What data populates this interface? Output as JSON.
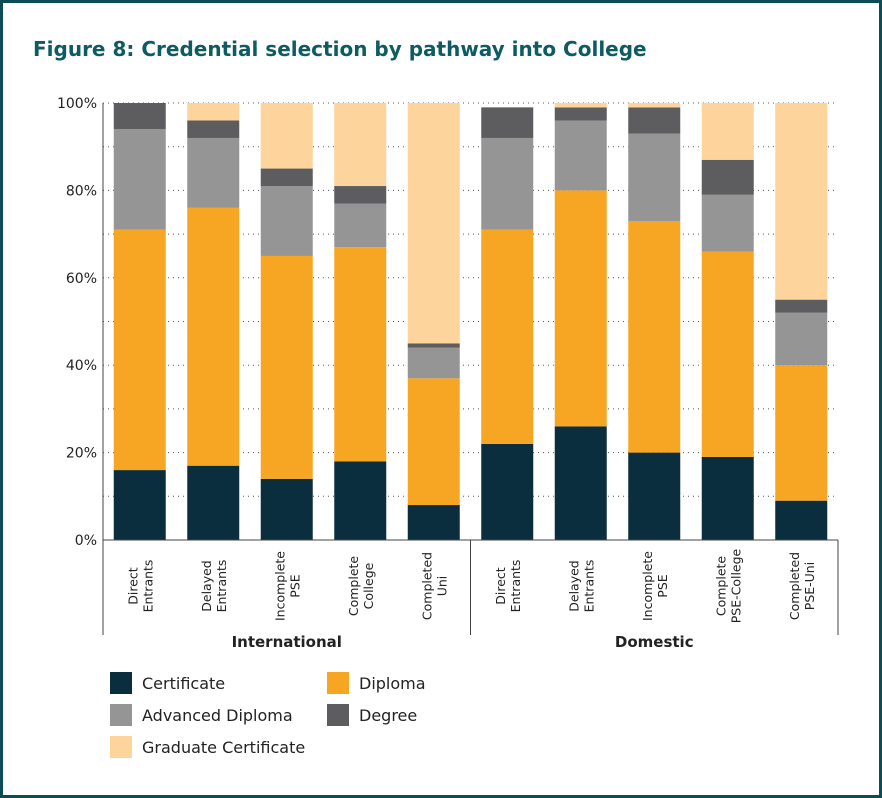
{
  "chart_data": {
    "type": "stacked_bar",
    "title": "Figure 8: Credential selection by pathway into College",
    "groups": [
      {
        "name": "International",
        "categories": [
          [
            "Direct",
            "Entrants"
          ],
          [
            "Delayed",
            "Entrants"
          ],
          [
            "Incomplete",
            "PSE"
          ],
          [
            "Complete",
            "College"
          ],
          [
            "Completed",
            "Uni"
          ]
        ]
      },
      {
        "name": "Domestic",
        "categories": [
          [
            "Direct",
            "Entrants"
          ],
          [
            "Delayed",
            "Entrants"
          ],
          [
            "Incomplete",
            "PSE"
          ],
          [
            "Complete",
            "PSE-College"
          ],
          [
            "Completed",
            "PSE-Uni"
          ]
        ]
      }
    ],
    "series": [
      {
        "name": "Certificate",
        "color": "#0b2e3f",
        "values": [
          16,
          17,
          14,
          18,
          8,
          22,
          26,
          20,
          19,
          9
        ]
      },
      {
        "name": "Diploma",
        "color": "#f6a623",
        "values": [
          55,
          59,
          51,
          49,
          29,
          49,
          54,
          53,
          47,
          31
        ]
      },
      {
        "name": "Advanced Diploma",
        "color": "#959596",
        "values": [
          23,
          16,
          16,
          10,
          7,
          21,
          16,
          20,
          13,
          12
        ]
      },
      {
        "name": "Degree",
        "color": "#5d5d60",
        "values": [
          6,
          4,
          4,
          4,
          1,
          7,
          3,
          6,
          8,
          3
        ]
      },
      {
        "name": "Graduate Certificate",
        "color": "#fdd49b",
        "values": [
          0,
          4,
          15,
          19,
          55,
          0,
          1,
          1,
          13,
          45
        ]
      }
    ],
    "ylim": [
      0,
      100
    ],
    "yticks": [
      {
        "value": 0,
        "label": "0%"
      },
      {
        "value": 20,
        "label": "20%"
      },
      {
        "value": 40,
        "label": "40%"
      },
      {
        "value": 60,
        "label": "60%"
      },
      {
        "value": 80,
        "label": "80%"
      },
      {
        "value": 100,
        "label": "100%"
      }
    ],
    "grid_yticks": [
      10,
      20,
      30,
      40,
      50,
      60,
      70,
      80,
      90,
      100
    ],
    "grid": true
  }
}
